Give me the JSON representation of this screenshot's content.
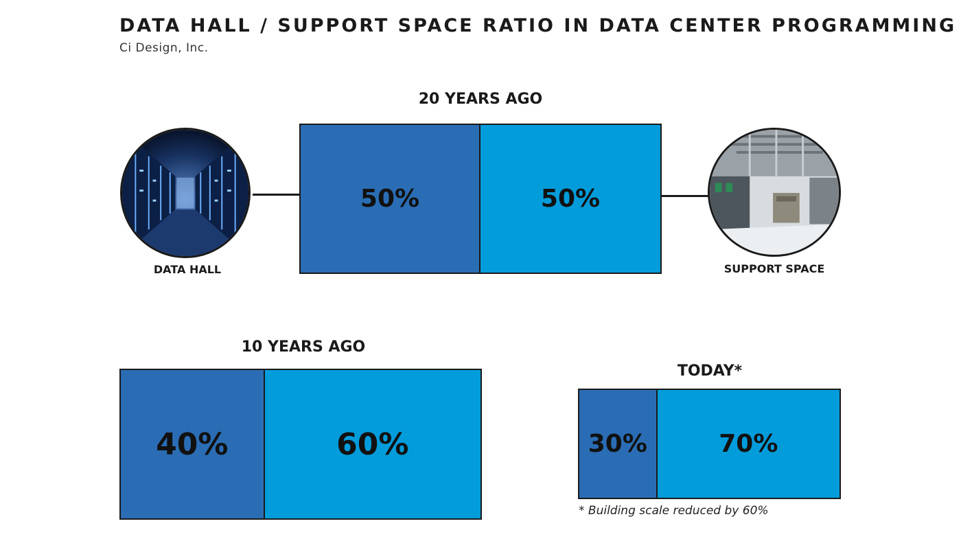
{
  "title": "DATA HALL / SUPPORT SPACE RATIO IN DATA CENTER PROGRAMMING",
  "subtitle": "Ci Design, Inc.",
  "legend": {
    "data_hall": {
      "label": "DATA HALL",
      "color": "#2a6db4",
      "icon": "server-aisle-photo"
    },
    "support_space": {
      "label": "SUPPORT SPACE",
      "color": "#039cdb",
      "icon": "mechanical-room-photo"
    }
  },
  "chart_data": [
    {
      "type": "bar",
      "title": "20 YEARS AGO",
      "categories": [
        "DATA HALL",
        "SUPPORT SPACE"
      ],
      "values": [
        50,
        50
      ],
      "labels": [
        "50%",
        "50%"
      ]
    },
    {
      "type": "bar",
      "title": "10 YEARS AGO",
      "categories": [
        "DATA HALL",
        "SUPPORT SPACE"
      ],
      "values": [
        40,
        60
      ],
      "labels": [
        "40%",
        "60%"
      ]
    },
    {
      "type": "bar",
      "title": "TODAY*",
      "categories": [
        "DATA HALL",
        "SUPPORT SPACE"
      ],
      "values": [
        30,
        70
      ],
      "labels": [
        "30%",
        "70%"
      ],
      "note": "* Building scale reduced by 60%"
    }
  ]
}
